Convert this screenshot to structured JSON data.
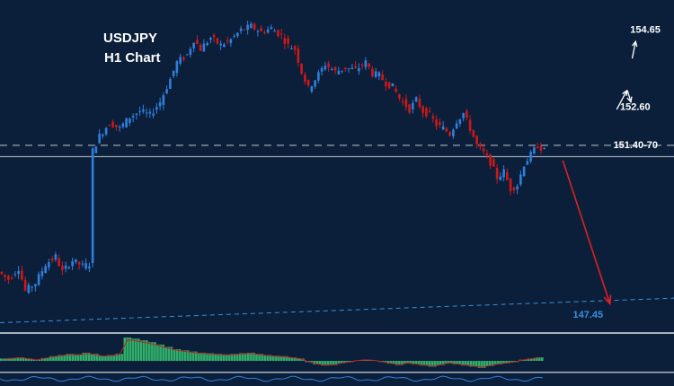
{
  "chart_data": {
    "type": "candlestick",
    "title": "USDJPY",
    "subtitle": "H1 Chart",
    "ylim": [
      146.6,
      155.4
    ],
    "xlim": [
      0,
      100
    ],
    "price_path": [
      [
        0,
        148.2
      ],
      [
        1.5,
        148.0
      ],
      [
        3,
        148.3
      ],
      [
        4,
        147.7
      ],
      [
        5.5,
        147.9
      ],
      [
        7,
        148.4
      ],
      [
        8.5,
        148.6
      ],
      [
        9.5,
        148.2
      ],
      [
        11,
        148.5
      ],
      [
        12.5,
        148.35
      ],
      [
        13.5,
        148.4
      ],
      [
        14,
        151.4
      ],
      [
        15,
        151.8
      ],
      [
        16.5,
        152.15
      ],
      [
        18,
        152.0
      ],
      [
        19.5,
        152.3
      ],
      [
        21,
        152.45
      ],
      [
        22.5,
        152.35
      ],
      [
        24,
        152.7
      ],
      [
        25.5,
        153.3
      ],
      [
        26.5,
        153.75
      ],
      [
        28,
        153.95
      ],
      [
        29,
        154.35
      ],
      [
        30,
        154.1
      ],
      [
        31.5,
        154.4
      ],
      [
        33,
        154.2
      ],
      [
        34.5,
        154.35
      ],
      [
        36,
        154.6
      ],
      [
        37.5,
        154.7
      ],
      [
        39,
        154.55
      ],
      [
        40.5,
        154.65
      ],
      [
        42,
        154.45
      ],
      [
        43,
        154.2
      ],
      [
        44,
        154.1
      ],
      [
        45,
        153.5
      ],
      [
        46,
        153.05
      ],
      [
        47,
        153.3
      ],
      [
        48.5,
        153.7
      ],
      [
        50,
        153.5
      ],
      [
        51.5,
        153.6
      ],
      [
        53,
        153.55
      ],
      [
        54.5,
        153.75
      ],
      [
        55.5,
        153.45
      ],
      [
        56.5,
        153.4
      ],
      [
        57.5,
        153.2
      ],
      [
        58.5,
        153.1
      ],
      [
        59.5,
        152.8
      ],
      [
        61,
        152.5
      ],
      [
        62,
        152.75
      ],
      [
        63,
        152.45
      ],
      [
        64,
        152.35
      ],
      [
        65,
        152.1
      ],
      [
        66,
        152.0
      ],
      [
        67,
        151.85
      ],
      [
        68,
        152.2
      ],
      [
        69,
        152.4
      ],
      [
        70,
        152.0
      ],
      [
        71,
        151.55
      ],
      [
        72,
        151.35
      ],
      [
        73,
        151.1
      ],
      [
        74,
        150.7
      ],
      [
        75,
        150.85
      ],
      [
        76,
        150.4
      ],
      [
        77,
        150.5
      ],
      [
        78,
        151.05
      ],
      [
        79,
        151.3
      ],
      [
        80,
        151.55
      ],
      [
        81,
        151.4
      ]
    ],
    "horizontal_lines": [
      {
        "label": "151.40-70",
        "value": 151.55,
        "style": "dashed"
      },
      {
        "label": "",
        "value": 151.25,
        "style": "solid"
      }
    ],
    "trendline": {
      "from": [
        0,
        146.85
      ],
      "to": [
        100,
        147.5
      ],
      "style": "dashed",
      "color": "#3a8fe0"
    },
    "annotations": [
      {
        "text": "154.65",
        "y": 154.65,
        "x": 93.5
      },
      {
        "text": "152.60",
        "y": 152.6,
        "x": 92
      },
      {
        "text": "151.40-70",
        "y": 151.6,
        "x": 91
      },
      {
        "text": "147.45",
        "y": 147.1,
        "x": 85
      }
    ],
    "forecast_arrow": {
      "from": [
        83.5,
        151.15
      ],
      "to": [
        90.5,
        147.35
      ],
      "color": "#e02020"
    },
    "target_arrows": [
      {
        "from": [
          91.5,
          152.5
        ],
        "to": [
          93,
          153.0
        ],
        "label": "152.60"
      },
      {
        "from": [
          93.8,
          153.85
        ],
        "to": [
          94.3,
          154.3
        ],
        "label": "154.65"
      },
      {
        "from": [
          93.1,
          153.0
        ],
        "to": [
          93.6,
          152.7
        ],
        "label": ""
      }
    ],
    "oscillator": {
      "type": "histogram",
      "values": [
        0.1,
        0.12,
        0.15,
        0.1,
        0.05,
        0.12,
        0.2,
        0.25,
        0.3,
        0.28,
        0.35,
        0.3,
        0.22,
        0.25,
        0.3,
        1.0,
        0.95,
        0.88,
        0.8,
        0.7,
        0.6,
        0.5,
        0.45,
        0.4,
        0.35,
        0.33,
        0.3,
        0.28,
        0.3,
        0.33,
        0.35,
        0.3,
        0.25,
        0.22,
        0.2,
        0.15,
        0.1,
        -0.05,
        -0.15,
        -0.2,
        -0.18,
        -0.1,
        -0.05,
        0.02,
        0.05,
        0.02,
        -0.05,
        -0.12,
        -0.18,
        -0.1,
        -0.15,
        -0.2,
        -0.25,
        -0.18,
        -0.1,
        -0.15,
        -0.2,
        -0.25,
        -0.3,
        -0.22,
        -0.15,
        -0.1,
        -0.05,
        0.05,
        0.1,
        0.15
      ],
      "colors": {
        "up": "#2fae6a",
        "down": "#2fae6a",
        "signal": "#c02020"
      }
    },
    "colors": {
      "up": "#2f7fdc",
      "down": "#d01818",
      "background": "#0b1f3a",
      "grid_line": "#8899aa"
    }
  }
}
